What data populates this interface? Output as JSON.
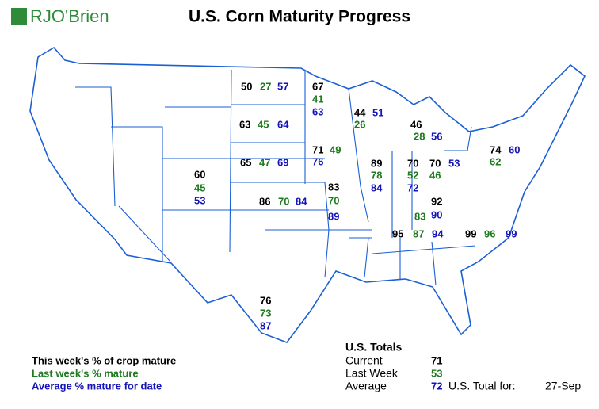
{
  "header": {
    "logo": "RJO'Brien",
    "title": "U.S. Corn Maturity Progress"
  },
  "states": [
    {
      "current": 50,
      "last_week": 27,
      "average": 57
    },
    {
      "current": 67,
      "last_week": 41,
      "average": 63
    },
    {
      "current": 44,
      "last_week": 26,
      "average": 51
    },
    {
      "current": 46,
      "last_week": 28,
      "average": 56
    },
    {
      "current": 63,
      "last_week": 45,
      "average": 64
    },
    {
      "current": 65,
      "last_week": 47,
      "average": 69
    },
    {
      "current": 71,
      "last_week": 49,
      "average": 76
    },
    {
      "current": 60,
      "last_week": 45,
      "average": 53
    },
    {
      "current": 86,
      "last_week": 70,
      "average": 84
    },
    {
      "current": 83,
      "last_week": 70,
      "average": 89
    },
    {
      "current": 89,
      "last_week": 78,
      "average": 84
    },
    {
      "current": 70,
      "last_week": 52,
      "average": 72
    },
    {
      "current": 70,
      "last_week": 46,
      "average": 53
    },
    {
      "current": 74,
      "last_week": 62,
      "average": 60
    },
    {
      "current": 92,
      "last_week": 83,
      "average": 90
    },
    {
      "current": 95,
      "last_week": 87,
      "average": 94
    },
    {
      "current": 99,
      "last_week": 96,
      "average": 99
    },
    {
      "current": 76,
      "last_week": 73,
      "average": 87
    }
  ],
  "legend": {
    "current": "This week's % of crop mature",
    "last_week": "Last week's % mature",
    "average": "Average % mature for date"
  },
  "totals": {
    "title": "U.S. Totals",
    "rows": [
      {
        "label": "Current",
        "value": 71
      },
      {
        "label": "Last Week",
        "value": 53
      },
      {
        "label": "Average",
        "value": 72
      }
    ],
    "date_label": "U.S. Total for:",
    "date": "27-Sep"
  }
}
